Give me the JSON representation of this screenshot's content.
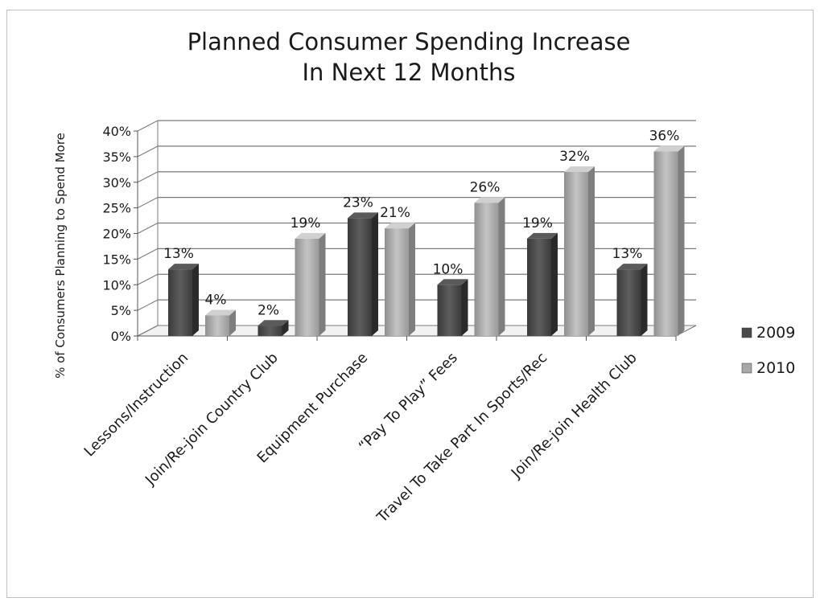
{
  "chart_data": {
    "type": "bar",
    "title_lines": [
      "Planned Consumer Spending Increase",
      "In Next 12 Months"
    ],
    "ylabel": "% of Consumers Planning to Spend More",
    "xlabel": "",
    "ylim": [
      0,
      40
    ],
    "yticks": [
      "0%",
      "5%",
      "10%",
      "15%",
      "20%",
      "25%",
      "30%",
      "35%",
      "40%"
    ],
    "grid": true,
    "legend_position": "right",
    "categories": [
      "Lessons/Instruction",
      "Join/Re-join Country Club",
      "Equipment Purchase",
      "“Pay To Play” Fees",
      "Travel To Take Part In Sports/Rec",
      "Join/Re-join Health Club"
    ],
    "series": [
      {
        "name": "2009",
        "values": [
          13,
          2,
          23,
          10,
          19,
          13
        ],
        "labels": [
          "13%",
          "2%",
          "23%",
          "10%",
          "19%",
          "13%"
        ],
        "color": "#4a4a4a"
      },
      {
        "name": "2010",
        "values": [
          4,
          19,
          21,
          26,
          32,
          36
        ],
        "labels": [
          "4%",
          "19%",
          "21%",
          "26%",
          "32%",
          "36%"
        ],
        "color": "#a8a8a8"
      }
    ]
  }
}
